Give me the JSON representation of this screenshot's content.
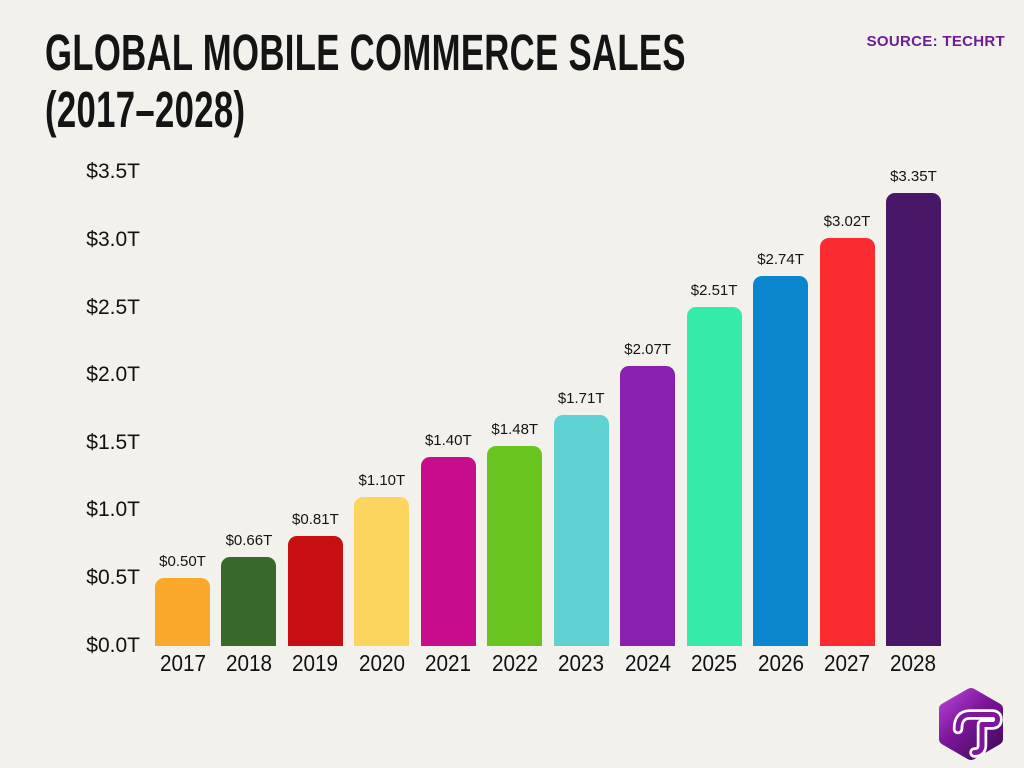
{
  "header": {
    "title_line1": "GLOBAL MOBILE COMMERCE SALES",
    "title_line2": "(2017–2028)",
    "source_label": "SOURCE: TECHRT"
  },
  "colors": {
    "background": "#f2f1ec",
    "title_text": "#141414",
    "source_text": "#6e1d96",
    "axis_text": "#111111",
    "logo_purple_light": "#ae3fd0",
    "logo_purple_dark": "#4c0b66"
  },
  "logo": {
    "name": "techrt-hexagon-logo",
    "letter": "T"
  },
  "chart_data": {
    "type": "bar",
    "title": "Global Mobile Commerce Sales (2017–2028)",
    "source": "TECHRT",
    "categories": [
      "2017",
      "2018",
      "2019",
      "2020",
      "2021",
      "2022",
      "2023",
      "2024",
      "2025",
      "2026",
      "2027",
      "2028"
    ],
    "values": [
      0.5,
      0.66,
      0.81,
      1.1,
      1.4,
      1.48,
      1.71,
      2.07,
      2.51,
      2.74,
      3.02,
      3.35
    ],
    "value_labels": [
      "$0.50T",
      "$0.66T",
      "$0.81T",
      "$1.10T",
      "$1.40T",
      "$1.48T",
      "$1.71T",
      "$2.07T",
      "$2.51T",
      "$2.74T",
      "$3.02T",
      "$3.35T"
    ],
    "bar_colors": [
      "#f9a82b",
      "#39682b",
      "#c60e13",
      "#fbd55d",
      "#c70d8c",
      "#69c41f",
      "#5ed2d2",
      "#8a20ae",
      "#35eba8",
      "#0b86ce",
      "#fb2c30",
      "#491767"
    ],
    "yticks": [
      0.0,
      0.5,
      1.0,
      1.5,
      2.0,
      2.5,
      3.0,
      3.5
    ],
    "ytick_labels": [
      "$0.0T",
      "$0.5T",
      "$1.0T",
      "$1.5T",
      "$2.0T",
      "$2.5T",
      "$3.0T",
      "$3.5T"
    ],
    "ylim": [
      0,
      3.5
    ],
    "xlabel": "",
    "ylabel": "",
    "grid": false,
    "legend": false
  }
}
